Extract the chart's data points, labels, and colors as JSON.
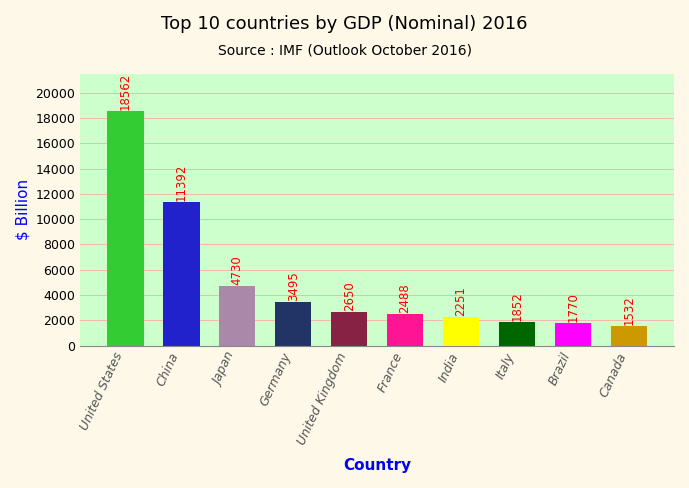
{
  "title": "Top 10 countries by GDP (Nominal) 2016",
  "subtitle": "Source : IMF (Outlook October 2016)",
  "xlabel": "Country",
  "ylabel": "$ Billion",
  "categories": [
    "United States",
    "China",
    "Japan",
    "Germany",
    "United Kingdom",
    "France",
    "India",
    "Italy",
    "Brazil",
    "Canada"
  ],
  "values": [
    18562,
    11392,
    4730,
    3495,
    2650,
    2488,
    2251,
    1852,
    1770,
    1532
  ],
  "bar_colors": [
    "#33cc33",
    "#2222cc",
    "#aa88aa",
    "#223366",
    "#882244",
    "#ff1493",
    "#ffff00",
    "#006600",
    "#ff00ff",
    "#cc9900"
  ],
  "figure_bg": "#fdf8e8",
  "plot_bg": "#ccffcc",
  "value_label_color": "#ff0000",
  "title_color": "#000000",
  "xlabel_color": "#0000ff",
  "ylabel_color": "#0000ff",
  "xticklabel_color": "#555555",
  "yticklabel_color": "#000000",
  "ylim": [
    0,
    21500
  ],
  "yticks": [
    0,
    2000,
    4000,
    6000,
    8000,
    10000,
    12000,
    14000,
    16000,
    18000,
    20000
  ],
  "title_fontsize": 13,
  "subtitle_fontsize": 10,
  "label_fontsize": 11,
  "value_fontsize": 8.5,
  "tick_fontsize": 9
}
